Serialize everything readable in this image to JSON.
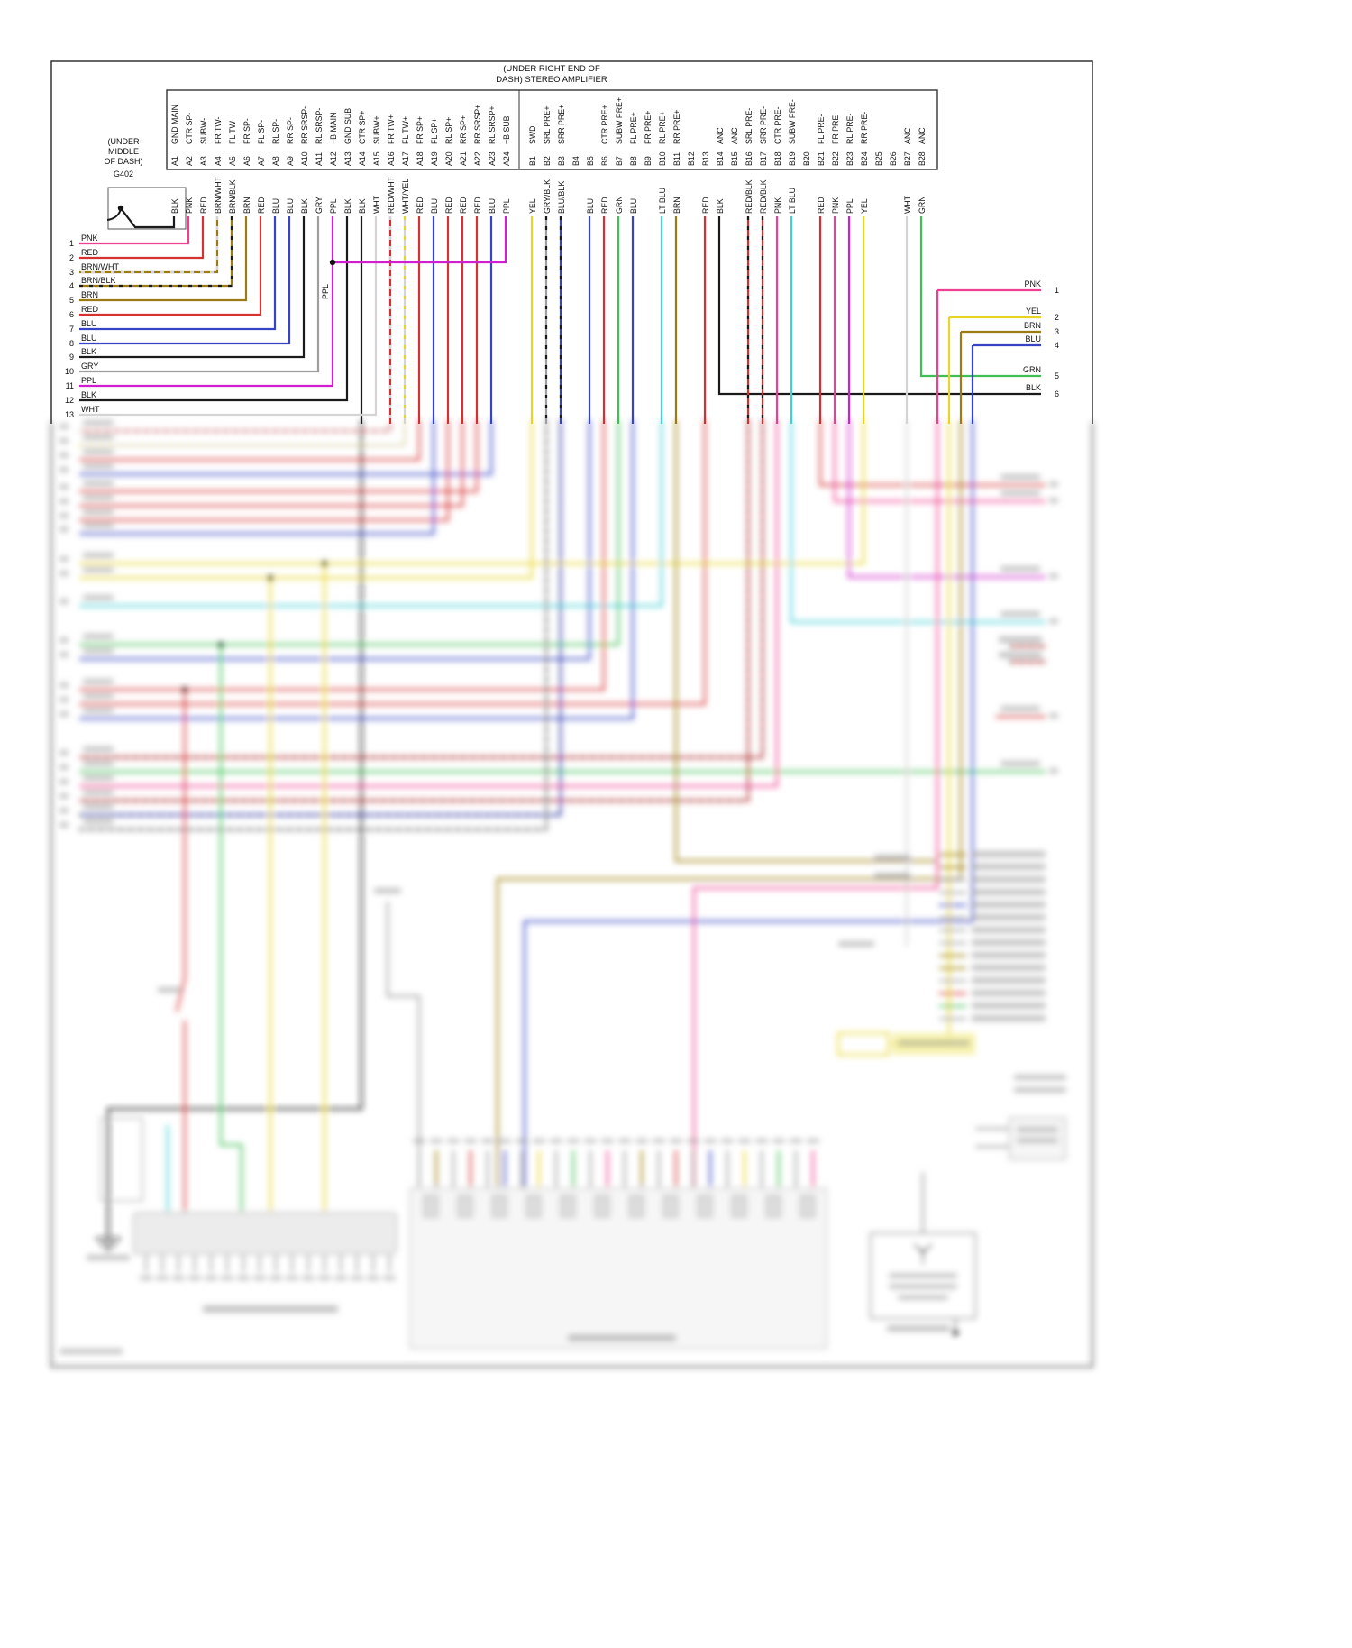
{
  "title": {
    "line1": "(UNDER RIGHT END OF",
    "line2": "DASH) STEREO AMPLIFIER"
  },
  "ground_label": {
    "line1": "(UNDER",
    "line2": "MIDDLE",
    "line3": "OF DASH)",
    "line4": "G402"
  },
  "ppl_splice_label": "PPL",
  "amplifier_connector": {
    "a_pins": [
      {
        "pin": "A1",
        "signal": "GND MAIN",
        "wire_color": "BLK"
      },
      {
        "pin": "A2",
        "signal": "CTR SP-",
        "wire_color": "PNK"
      },
      {
        "pin": "A3",
        "signal": "SUBW-",
        "wire_color": "RED"
      },
      {
        "pin": "A4",
        "signal": "FR TW-",
        "wire_color": "BRN/WHT"
      },
      {
        "pin": "A5",
        "signal": "FL TW-",
        "wire_color": "BRN/BLK"
      },
      {
        "pin": "A6",
        "signal": "FR SP-",
        "wire_color": "BRN"
      },
      {
        "pin": "A7",
        "signal": "FL SP-",
        "wire_color": "RED"
      },
      {
        "pin": "A8",
        "signal": "RL SP-",
        "wire_color": "BLU"
      },
      {
        "pin": "A9",
        "signal": "RR SP-",
        "wire_color": "BLU"
      },
      {
        "pin": "A10",
        "signal": "RR SRSP-",
        "wire_color": "BLK"
      },
      {
        "pin": "A11",
        "signal": "RL SRSP-",
        "wire_color": "GRY"
      },
      {
        "pin": "A12",
        "signal": "+B MAIN",
        "wire_color": "PPL"
      },
      {
        "pin": "A13",
        "signal": "GND SUB",
        "wire_color": "BLK"
      },
      {
        "pin": "A14",
        "signal": "CTR SP+",
        "wire_color": "BLK"
      },
      {
        "pin": "A15",
        "signal": "SUBW+",
        "wire_color": "WHT"
      },
      {
        "pin": "A16",
        "signal": "FR TW+",
        "wire_color": "RED/WHT"
      },
      {
        "pin": "A17",
        "signal": "FL TW+",
        "wire_color": "WHT/YEL"
      },
      {
        "pin": "A18",
        "signal": "FR SP+",
        "wire_color": "RED"
      },
      {
        "pin": "A19",
        "signal": "FL SP+",
        "wire_color": "BLU"
      },
      {
        "pin": "A20",
        "signal": "RL SP+",
        "wire_color": "RED"
      },
      {
        "pin": "A21",
        "signal": "RR SP+",
        "wire_color": "RED"
      },
      {
        "pin": "A22",
        "signal": "RR SRSP+",
        "wire_color": "RED"
      },
      {
        "pin": "A23",
        "signal": "RL SRSP+",
        "wire_color": "BLU"
      },
      {
        "pin": "A24",
        "signal": "+B SUB",
        "wire_color": "PPL"
      }
    ],
    "b_pins": [
      {
        "pin": "B1",
        "signal": "SWD",
        "wire_color": "YEL"
      },
      {
        "pin": "B2",
        "signal": "SRL PRE+",
        "wire_color": "GRY/BLK"
      },
      {
        "pin": "B3",
        "signal": "SRR PRE+",
        "wire_color": "BLU/BLK"
      },
      {
        "pin": "B4",
        "signal": "",
        "wire_color": ""
      },
      {
        "pin": "B5",
        "signal": "",
        "wire_color": "BLU"
      },
      {
        "pin": "B6",
        "signal": "CTR PRE+",
        "wire_color": "RED"
      },
      {
        "pin": "B7",
        "signal": "SUBW PRE+",
        "wire_color": "GRN"
      },
      {
        "pin": "B8",
        "signal": "FL PRE+",
        "wire_color": "BLU"
      },
      {
        "pin": "B9",
        "signal": "FR PRE+",
        "wire_color": ""
      },
      {
        "pin": "B10",
        "signal": "RL PRE+",
        "wire_color": "LT BLU"
      },
      {
        "pin": "B11",
        "signal": "RR PRE+",
        "wire_color": "BRN"
      },
      {
        "pin": "B12",
        "signal": "",
        "wire_color": ""
      },
      {
        "pin": "B13",
        "signal": "",
        "wire_color": "RED"
      },
      {
        "pin": "B14",
        "signal": "ANC",
        "wire_color": "BLK"
      },
      {
        "pin": "B15",
        "signal": "ANC",
        "wire_color": ""
      },
      {
        "pin": "B16",
        "signal": "SRL PRE-",
        "wire_color": "RED/BLK"
      },
      {
        "pin": "B17",
        "signal": "SRR PRE-",
        "wire_color": "RED/BLK"
      },
      {
        "pin": "B18",
        "signal": "CTR PRE-",
        "wire_color": "PNK"
      },
      {
        "pin": "B19",
        "signal": "SUBW PRE-",
        "wire_color": "LT BLU"
      },
      {
        "pin": "B20",
        "signal": "",
        "wire_color": ""
      },
      {
        "pin": "B21",
        "signal": "FL PRE-",
        "wire_color": "RED"
      },
      {
        "pin": "B22",
        "signal": "FR PRE-",
        "wire_color": "PNK"
      },
      {
        "pin": "B23",
        "signal": "RL PRE-",
        "wire_color": "PPL"
      },
      {
        "pin": "B24",
        "signal": "RR PRE-",
        "wire_color": "YEL"
      },
      {
        "pin": "B25",
        "signal": "",
        "wire_color": ""
      },
      {
        "pin": "B26",
        "signal": "",
        "wire_color": ""
      },
      {
        "pin": "B27",
        "signal": "ANC",
        "wire_color": "WHT"
      },
      {
        "pin": "B28",
        "signal": "ANC",
        "wire_color": "GRN"
      }
    ]
  },
  "left_connector": {
    "rows": [
      {
        "n": "1",
        "wire_color": "PNK"
      },
      {
        "n": "2",
        "wire_color": "RED"
      },
      {
        "n": "3",
        "wire_color": "BRN/WHT"
      },
      {
        "n": "4",
        "wire_color": "BRN/BLK"
      },
      {
        "n": "5",
        "wire_color": "BRN"
      },
      {
        "n": "6",
        "wire_color": "RED"
      },
      {
        "n": "7",
        "wire_color": "BLU"
      },
      {
        "n": "8",
        "wire_color": "BLU"
      },
      {
        "n": "9",
        "wire_color": "BLK"
      },
      {
        "n": "10",
        "wire_color": "GRY"
      },
      {
        "n": "11",
        "wire_color": "PPL"
      },
      {
        "n": "12",
        "wire_color": "BLK"
      },
      {
        "n": "13",
        "wire_color": "WHT"
      }
    ]
  },
  "right_connector": {
    "rows": [
      {
        "n": "1",
        "wire_color": "PNK"
      },
      {
        "n": "2",
        "wire_color": "YEL"
      },
      {
        "n": "3",
        "wire_color": "BRN"
      },
      {
        "n": "4",
        "wire_color": "BLU"
      },
      {
        "n": "5",
        "wire_color": "GRN"
      },
      {
        "n": "6",
        "wire_color": "BLK"
      }
    ]
  },
  "palette": {
    "BLK": "#1a1a1a",
    "PNK": "#ef3f8f",
    "RED": "#d63031",
    "BRN": "#9a7b16",
    "BLU": "#3543c4",
    "GRY": "#9e9e9e",
    "PPL": "#cf1fce",
    "WHT": "#d4d4d4",
    "YEL": "#e8d426",
    "LT BLU": "#41cfd8",
    "GRN": "#3fbf54"
  }
}
